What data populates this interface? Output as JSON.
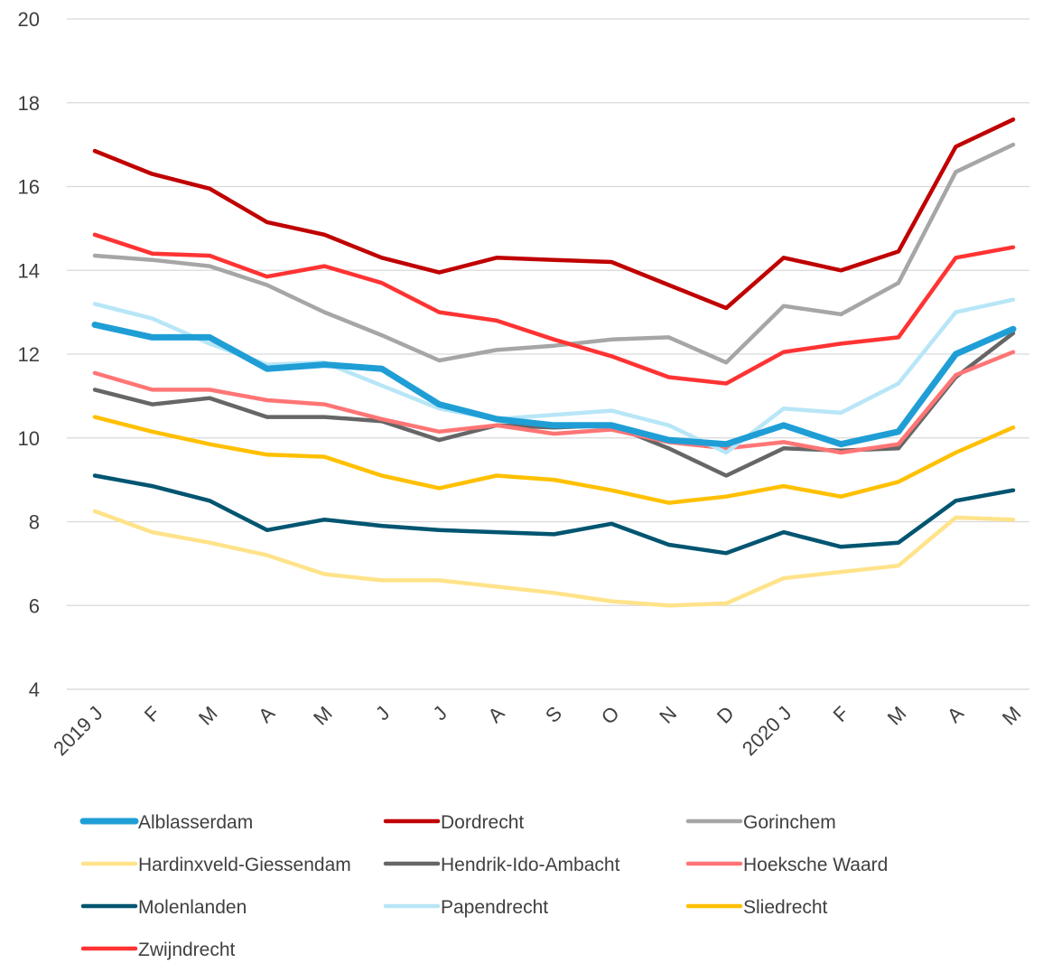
{
  "chart_data": {
    "type": "line",
    "title": "",
    "xlabel": "",
    "ylabel": "",
    "ylim": [
      4,
      20
    ],
    "yticks": [
      4,
      6,
      8,
      10,
      12,
      14,
      16,
      18,
      20
    ],
    "grid": "horizontal",
    "legend_position": "bottom",
    "categories": [
      "2019 J",
      "F",
      "M",
      "A",
      "M",
      "J",
      "J",
      "A",
      "S",
      "O",
      "N",
      "D",
      "2020 J",
      "F",
      "M",
      "A",
      "M"
    ],
    "series": [
      {
        "name": "Alblasserdam",
        "color": "#1f9ed6",
        "emphasis": true,
        "values": [
          12.7,
          12.4,
          12.4,
          11.65,
          11.75,
          11.65,
          10.8,
          10.45,
          10.3,
          10.3,
          9.95,
          9.85,
          10.3,
          9.85,
          10.15,
          12.0,
          12.6
        ]
      },
      {
        "name": "Dordrecht",
        "color": "#c00000",
        "values": [
          16.85,
          16.3,
          15.95,
          15.15,
          14.85,
          14.3,
          13.95,
          14.3,
          14.25,
          14.2,
          13.65,
          13.1,
          14.3,
          14.0,
          14.45,
          16.95,
          17.6
        ]
      },
      {
        "name": "Gorinchem",
        "color": "#a6a6a6",
        "values": [
          14.35,
          14.25,
          14.1,
          13.65,
          13.0,
          12.45,
          11.85,
          12.1,
          12.2,
          12.35,
          12.4,
          11.8,
          13.15,
          12.95,
          13.7,
          16.35,
          17.0
        ]
      },
      {
        "name": "Hardinxveld-Giessendam",
        "color": "#ffe38a",
        "values": [
          8.25,
          7.75,
          7.5,
          7.2,
          6.75,
          6.6,
          6.6,
          6.45,
          6.3,
          6.1,
          6.0,
          6.05,
          6.65,
          6.8,
          6.95,
          8.1,
          8.05
        ]
      },
      {
        "name": "Hendrik-Ido-Ambacht",
        "color": "#666666",
        "values": [
          11.15,
          10.8,
          10.95,
          10.5,
          10.5,
          10.4,
          9.95,
          10.3,
          10.25,
          10.3,
          9.75,
          9.1,
          9.75,
          9.7,
          9.75,
          11.45,
          12.5
        ]
      },
      {
        "name": "Hoeksche Waard",
        "color": "#ff7575",
        "values": [
          11.55,
          11.15,
          11.15,
          10.9,
          10.8,
          10.45,
          10.15,
          10.3,
          10.1,
          10.2,
          9.9,
          9.75,
          9.9,
          9.65,
          9.85,
          11.5,
          12.05
        ]
      },
      {
        "name": "Molenlanden",
        "color": "#005571",
        "values": [
          9.1,
          8.85,
          8.5,
          7.8,
          8.05,
          7.9,
          7.8,
          7.75,
          7.7,
          7.95,
          7.45,
          7.25,
          7.75,
          7.4,
          7.5,
          8.5,
          8.75
        ]
      },
      {
        "name": "Papendrecht",
        "color": "#b7e6f7",
        "values": [
          13.2,
          12.85,
          12.25,
          11.75,
          11.8,
          11.25,
          10.7,
          10.45,
          10.55,
          10.65,
          10.3,
          9.65,
          10.7,
          10.6,
          11.3,
          13.0,
          13.3
        ]
      },
      {
        "name": "Sliedrecht",
        "color": "#ffc000",
        "values": [
          10.5,
          10.15,
          9.85,
          9.6,
          9.55,
          9.1,
          8.8,
          9.1,
          9.0,
          8.75,
          8.45,
          8.6,
          8.85,
          8.6,
          8.95,
          9.65,
          10.25
        ]
      },
      {
        "name": "Zwijndrecht",
        "color": "#ff3333",
        "values": [
          14.85,
          14.4,
          14.35,
          13.85,
          14.1,
          13.7,
          13.0,
          12.8,
          12.35,
          11.95,
          11.45,
          11.3,
          12.05,
          12.25,
          12.4,
          14.3,
          14.55
        ]
      }
    ]
  }
}
